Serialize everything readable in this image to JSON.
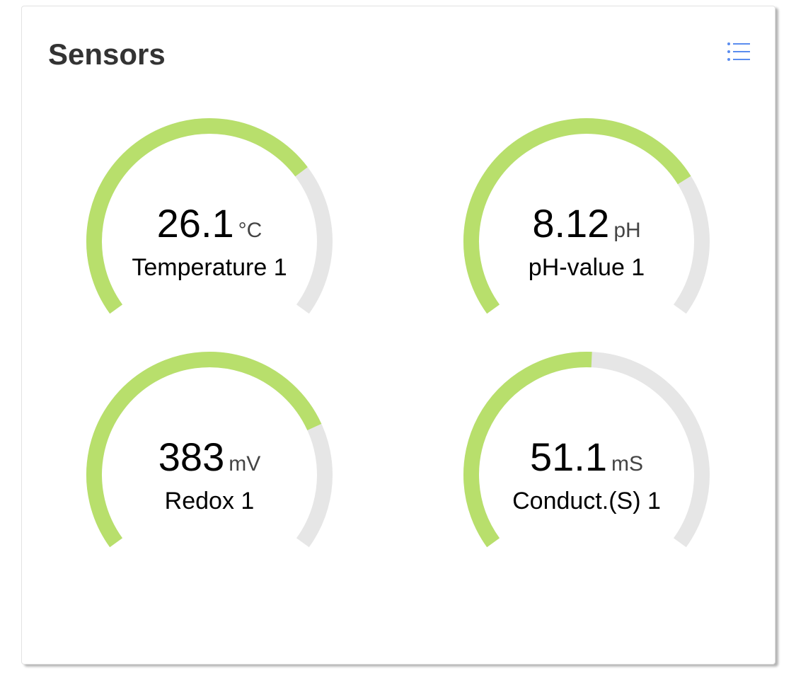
{
  "header": {
    "title": "Sensors",
    "menu_icon": "list-icon",
    "accent": "#5b8def"
  },
  "colors": {
    "fill": "#b8df6c",
    "track": "#e6e6e6"
  },
  "gauges": [
    {
      "value": "26.1",
      "unit": "°C",
      "label": "Temperature 1",
      "fill_fraction": 0.71
    },
    {
      "value": "8.12",
      "unit": "pH",
      "label": "pH-value 1",
      "fill_fraction": 0.73
    },
    {
      "value": "383",
      "unit": "mV",
      "label": "Redox 1",
      "fill_fraction": 0.76
    },
    {
      "value": "51.1",
      "unit": "mS",
      "label": "Conduct.(S) 1",
      "fill_fraction": 0.51
    }
  ]
}
